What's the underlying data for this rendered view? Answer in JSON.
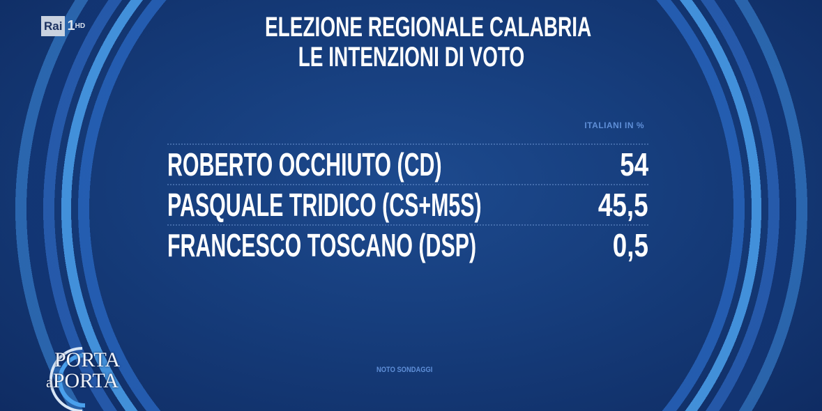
{
  "channel": {
    "logo_text": "Rai",
    "number": "1",
    "suffix": "HD"
  },
  "title": {
    "line1": "ELEZIONE REGIONALE CALABRIA",
    "line2": "LE INTENZIONI DI VOTO"
  },
  "chart_data": {
    "type": "table",
    "title": "ELEZIONE REGIONALE CALABRIA - LE INTENZIONI DI VOTO",
    "unit_label": "ITALIANI IN %",
    "rows": [
      {
        "name": "ROBERTO OCCHIUTO (CD)",
        "value": "54"
      },
      {
        "name": "PASQUALE TRIDICO (CS+M5S)",
        "value": "45,5"
      },
      {
        "name": "FRANCESCO TOSCANO (DSP)",
        "value": "0,5"
      }
    ],
    "source": "NOTO SONDAGGI"
  },
  "show": {
    "logo_line1": "PORTA",
    "logo_a": "a",
    "logo_line2": "PORTA"
  },
  "colors": {
    "background": "#163d7c",
    "arc": "#3f8ee0",
    "accent_text": "#5f8fd8"
  }
}
